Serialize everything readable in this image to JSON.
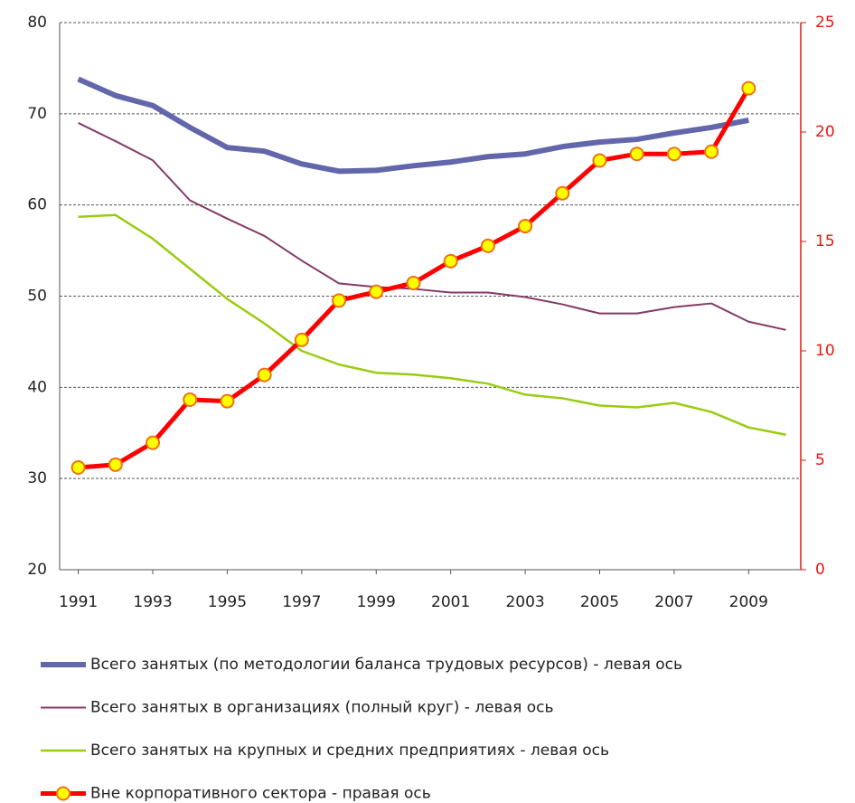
{
  "chart_data": {
    "type": "line",
    "x": [
      1991,
      1992,
      1993,
      1994,
      1995,
      1996,
      1997,
      1998,
      1999,
      2000,
      2001,
      2002,
      2003,
      2004,
      2005,
      2006,
      2007,
      2008,
      2009,
      2010
    ],
    "xlim": [
      1990.5,
      2010.4
    ],
    "xticks": [
      1991,
      1993,
      1995,
      1997,
      1999,
      2001,
      2003,
      2005,
      2007,
      2009
    ],
    "ylim": [
      20,
      80
    ],
    "yticks": [
      20,
      30,
      40,
      50,
      60,
      70,
      80
    ],
    "y2lim": [
      0,
      25
    ],
    "y2ticks": [
      0,
      5,
      10,
      15,
      20,
      25
    ],
    "y2color": "#e8170e",
    "grid": true,
    "legend": "bottom",
    "series": [
      {
        "name": "Всего занятых (по методологии баланса трудовых ресурсов) - левая ось",
        "color": "#6266aa",
        "values": [
          73.8,
          72,
          70.9,
          68.5,
          66.3,
          65.9,
          64.5,
          63.7,
          63.8,
          64.3,
          64.7,
          65.3,
          65.6,
          66.4,
          66.9,
          67.2,
          67.9,
          68.5,
          69.3,
          null
        ]
      },
      {
        "name": "Всего занятых в организациях (полный круг) - левая ось",
        "color": "#843a68",
        "values": [
          69,
          67,
          64.9,
          60.5,
          58.5,
          56.6,
          53.9,
          51.4,
          51,
          50.8,
          50.4,
          50.4,
          49.9,
          49.1,
          48.1,
          48.1,
          48.8,
          49.2,
          47.2,
          46.3
        ]
      },
      {
        "name": "Всего занятых на крупных и средних предприятиях - левая ось",
        "color": "#99cc11",
        "values": [
          58.7,
          58.9,
          56.3,
          53,
          49.7,
          47,
          44,
          42.5,
          41.6,
          41.4,
          41,
          40.4,
          39.2,
          38.8,
          38,
          37.8,
          38.3,
          37.3,
          35.6,
          34.8
        ]
      },
      {
        "name": "Вне корпоративного сектора - правая ось",
        "color": "#ff0000",
        "axis": "y2",
        "marker_color": "#ffff00",
        "values": [
          4.67,
          4.8,
          5.8,
          7.77,
          7.7,
          8.9,
          10.5,
          12.3,
          12.7,
          13.1,
          14.1,
          14.8,
          15.7,
          17.2,
          18.7,
          19.0,
          19.0,
          19.1,
          22.0,
          null
        ]
      }
    ]
  }
}
